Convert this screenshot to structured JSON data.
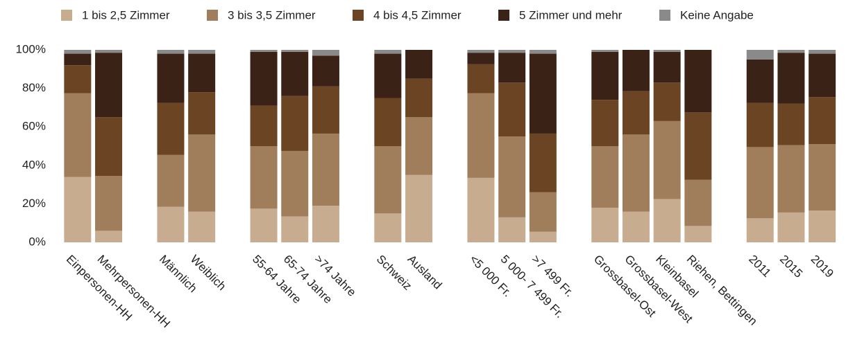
{
  "chart_data": {
    "type": "stacked_bar",
    "categories": [
      "Einpersonen-HH",
      "Mehrpersonen-HH",
      null,
      "Männlich",
      "Weiblich",
      null,
      "55-64 Jahre",
      "65-74 Jahre",
      ">74 Jahre",
      null,
      "Schweiz",
      "Ausland",
      null,
      "<5 000 Fr.",
      "5 000- 7 499 Fr.",
      ">7 499 Fr.",
      null,
      "Grossbasel-Ost",
      "Grossbasel-West",
      "Kleinbasel",
      "Riehen, Bettingen",
      null,
      "2011",
      "2015",
      "2019"
    ],
    "series": [
      {
        "name": "1 bis 2,5 Zimmer",
        "color": "#c8ac90",
        "values": [
          34,
          6,
          null,
          18.5,
          16,
          null,
          17.5,
          13.5,
          19,
          null,
          15,
          35,
          null,
          33.5,
          13,
          5.5,
          null,
          18,
          16,
          22.5,
          8.5,
          null,
          12.5,
          15.5,
          16.5
        ]
      },
      {
        "name": "3 bis 3,5 Zimmer",
        "color": "#a07d5b",
        "values": [
          43.5,
          28.5,
          null,
          27,
          40,
          null,
          32.5,
          34,
          37.5,
          null,
          35,
          30,
          null,
          44,
          42,
          20.5,
          null,
          32,
          40,
          40.5,
          24,
          null,
          37,
          35,
          34.5
        ]
      },
      {
        "name": "4 bis 4,5 Zimmer",
        "color": "#6b4423",
        "values": [
          14.5,
          30.5,
          null,
          27,
          22,
          null,
          21,
          28.5,
          24.5,
          null,
          25,
          20,
          null,
          15,
          28,
          30.5,
          null,
          24,
          22.5,
          20,
          35,
          null,
          23,
          21.5,
          24.5
        ]
      },
      {
        "name": "5 Zimmer und mehr",
        "color": "#3b2216",
        "values": [
          6,
          33.5,
          null,
          25.5,
          20,
          null,
          28,
          23,
          16,
          null,
          23,
          15,
          null,
          6,
          15.5,
          41.5,
          null,
          25,
          21.5,
          16,
          32.5,
          null,
          22.5,
          26.5,
          22.5
        ]
      },
      {
        "name": "Keine Angabe",
        "color": "#8a8a8a",
        "values": [
          2,
          1.5,
          null,
          2,
          2,
          null,
          1,
          1,
          3,
          null,
          2,
          0,
          null,
          1.5,
          1.5,
          2,
          null,
          1,
          0,
          1,
          0,
          null,
          5,
          1.5,
          2
        ]
      }
    ],
    "ylim": [
      0,
      100
    ],
    "yticks": [
      {
        "value": 0,
        "label": "0%"
      },
      {
        "value": 20,
        "label": "20%"
      },
      {
        "value": 40,
        "label": "40%"
      },
      {
        "value": 60,
        "label": "60%"
      },
      {
        "value": 80,
        "label": "80%"
      },
      {
        "value": 100,
        "label": "100%"
      }
    ],
    "grid": false
  }
}
